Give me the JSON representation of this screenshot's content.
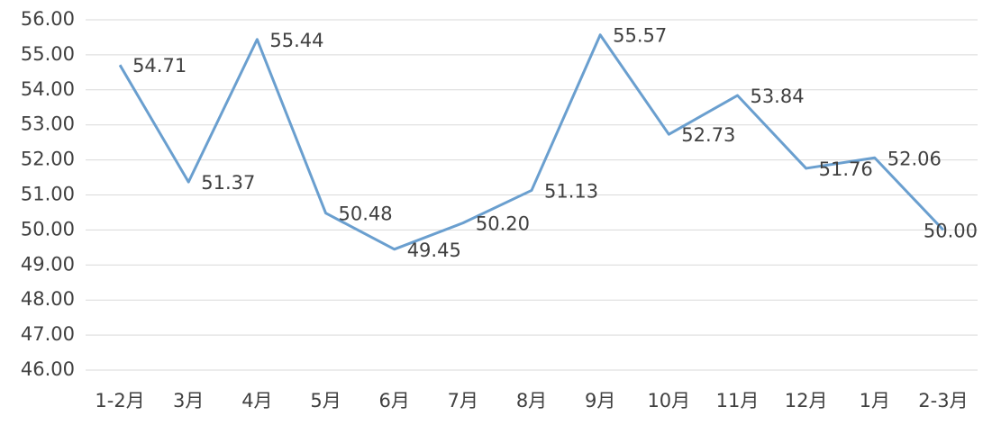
{
  "chart_data": {
    "type": "line",
    "categories": [
      "1-2月",
      "3月",
      "4月",
      "5月",
      "6月",
      "7月",
      "8月",
      "9月",
      "10月",
      "11月",
      "12月",
      "1月",
      "2-3月"
    ],
    "series": [
      {
        "color": "#6a9fcf",
        "values": [
          54.71,
          51.37,
          55.44,
          50.48,
          49.45,
          50.2,
          51.13,
          55.57,
          52.73,
          53.84,
          51.76,
          52.06,
          50.0
        ],
        "value_labels": [
          "54.71",
          "51.37",
          "55.44",
          "50.48",
          "49.45",
          "50.20",
          "51.13",
          "55.57",
          "52.73",
          "53.84",
          "51.76",
          "52.06",
          "50.00"
        ]
      }
    ],
    "ylim": [
      46,
      56
    ],
    "yticks": [
      {
        "value": 46,
        "label": "46.00"
      },
      {
        "value": 47,
        "label": "47.00"
      },
      {
        "value": 48,
        "label": "48.00"
      },
      {
        "value": 49,
        "label": "49.00"
      },
      {
        "value": 50,
        "label": "50.00"
      },
      {
        "value": 51,
        "label": "51.00"
      },
      {
        "value": 52,
        "label": "52.00"
      },
      {
        "value": 53,
        "label": "53.00"
      },
      {
        "value": 54,
        "label": "54.00"
      },
      {
        "value": 55,
        "label": "55.00"
      },
      {
        "value": 56,
        "label": "56.00"
      }
    ],
    "grid": true
  }
}
